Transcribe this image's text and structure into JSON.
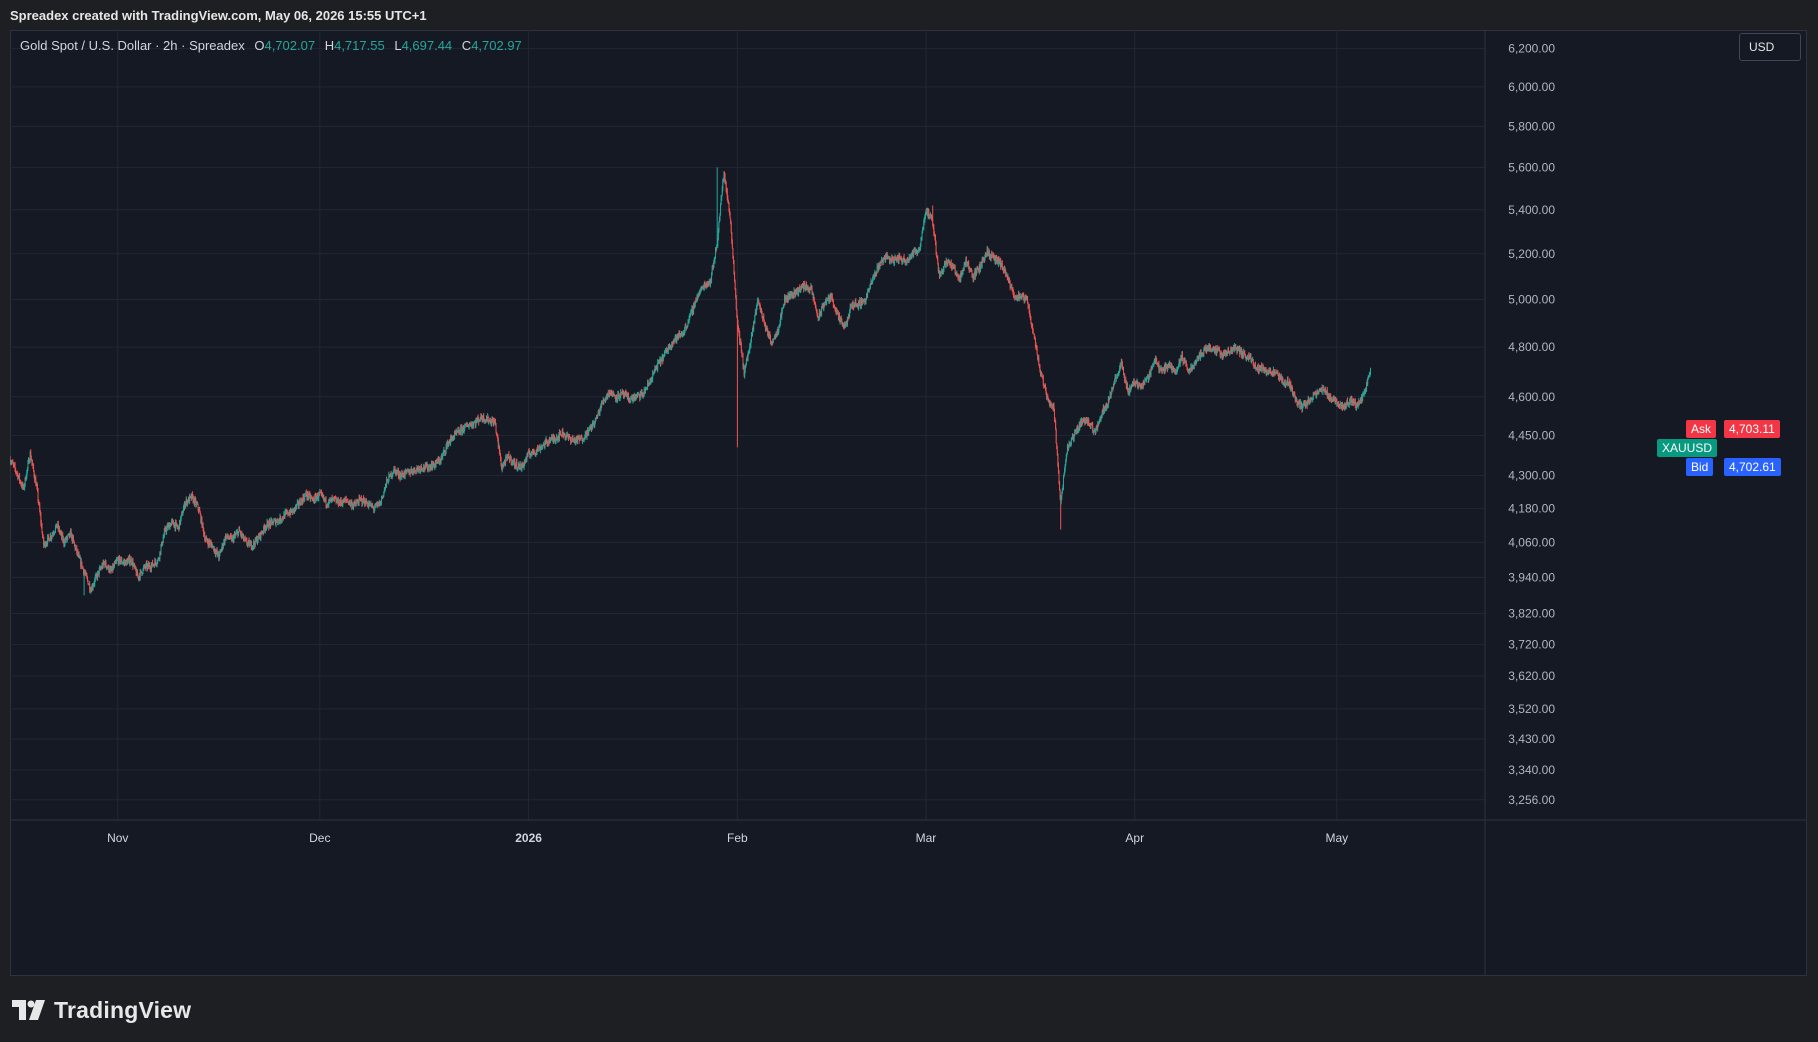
{
  "header": {
    "caption": "Spreadex created with TradingView.com, May 06, 2026 15:55 UTC+1"
  },
  "legend": {
    "symbol": "Gold Spot / U.S. Dollar · 2h · Spreadex",
    "open_label": "O",
    "open": "4,702.07",
    "high_label": "H",
    "high": "4,717.55",
    "low_label": "L",
    "low": "4,697.44",
    "close_label": "C",
    "close": "4,702.97"
  },
  "currency_button": "USD",
  "price_tags": {
    "ask_label": "Ask",
    "ask": "4,703.11",
    "symbol": "XAUUSD",
    "bid_label": "Bid",
    "bid": "4,702.61"
  },
  "colors": {
    "up": "#26a69a",
    "down": "#ef5350",
    "background": "#151924",
    "grid": "#232734",
    "ask": "#f23645",
    "bid": "#2962ff",
    "symbol_tag": "#089981"
  },
  "footer": {
    "brand": "TradingView",
    "logo_icon": "tradingview-logo-icon"
  },
  "chart_data": {
    "type": "candlestick",
    "scale": "log",
    "interval": "2h",
    "y_ticks": [
      3256,
      3340,
      3430,
      3520,
      3620,
      3720,
      3820,
      3940,
      4060,
      4180,
      4300,
      4450,
      4600,
      4800,
      5000,
      5200,
      5400,
      5600,
      5800,
      6000,
      6200
    ],
    "y_tick_labels": [
      "3,256.00",
      "3,340.00",
      "3,430.00",
      "3,520.00",
      "3,620.00",
      "3,720.00",
      "3,820.00",
      "3,940.00",
      "4,060.00",
      "4,180.00",
      "4,300.00",
      "4,450.00",
      "4,600.00",
      "4,800.00",
      "5,000.00",
      "5,200.00",
      "5,400.00",
      "5,600.00",
      "5,800.00",
      "6,000.00",
      "6,200.00"
    ],
    "ylim": [
      3200,
      6300
    ],
    "x_ticks": [
      {
        "date": "2025-11-01",
        "label": "Nov"
      },
      {
        "date": "2025-12-01",
        "label": "Dec"
      },
      {
        "date": "2026-01-01",
        "label": "2026"
      },
      {
        "date": "2026-02-01",
        "label": "Feb"
      },
      {
        "date": "2026-03-01",
        "label": "Mar"
      },
      {
        "date": "2026-04-01",
        "label": "Apr"
      },
      {
        "date": "2026-05-01",
        "label": "May"
      }
    ],
    "xlim": [
      "2025-10-16",
      "2026-05-23"
    ],
    "series_path": [
      [
        "2025-10-16",
        4360
      ],
      [
        "2025-10-17",
        4310
      ],
      [
        "2025-10-18",
        4250
      ],
      [
        "2025-10-19",
        4380
      ],
      [
        "2025-10-20",
        4250
      ],
      [
        "2025-10-21",
        4050
      ],
      [
        "2025-10-22",
        4080
      ],
      [
        "2025-10-23",
        4120
      ],
      [
        "2025-10-24",
        4060
      ],
      [
        "2025-10-25",
        4090
      ],
      [
        "2025-10-26",
        4020
      ],
      [
        "2025-10-27",
        3960
      ],
      [
        "2025-10-28",
        3900
      ],
      [
        "2025-10-29",
        3950
      ],
      [
        "2025-10-30",
        3990
      ],
      [
        "2025-10-31",
        3960
      ],
      [
        "2025-11-01",
        4000
      ],
      [
        "2025-11-02",
        3990
      ],
      [
        "2025-11-03",
        4000
      ],
      [
        "2025-11-04",
        3940
      ],
      [
        "2025-11-05",
        3975
      ],
      [
        "2025-11-06",
        3980
      ],
      [
        "2025-11-07",
        4000
      ],
      [
        "2025-11-08",
        4100
      ],
      [
        "2025-11-09",
        4130
      ],
      [
        "2025-11-10",
        4110
      ],
      [
        "2025-11-11",
        4200
      ],
      [
        "2025-11-12",
        4220
      ],
      [
        "2025-11-13",
        4180
      ],
      [
        "2025-11-14",
        4070
      ],
      [
        "2025-11-15",
        4050
      ],
      [
        "2025-11-16",
        4010
      ],
      [
        "2025-11-17",
        4080
      ],
      [
        "2025-11-18",
        4070
      ],
      [
        "2025-11-19",
        4100
      ],
      [
        "2025-11-20",
        4060
      ],
      [
        "2025-11-21",
        4050
      ],
      [
        "2025-11-22",
        4080
      ],
      [
        "2025-11-23",
        4120
      ],
      [
        "2025-11-24",
        4130
      ],
      [
        "2025-11-25",
        4140
      ],
      [
        "2025-11-26",
        4160
      ],
      [
        "2025-11-27",
        4170
      ],
      [
        "2025-11-28",
        4200
      ],
      [
        "2025-11-29",
        4230
      ],
      [
        "2025-11-30",
        4210
      ],
      [
        "2025-12-01",
        4230
      ],
      [
        "2025-12-02",
        4200
      ],
      [
        "2025-12-03",
        4210
      ],
      [
        "2025-12-04",
        4200
      ],
      [
        "2025-12-05",
        4210
      ],
      [
        "2025-12-06",
        4190
      ],
      [
        "2025-12-07",
        4210
      ],
      [
        "2025-12-08",
        4200
      ],
      [
        "2025-12-09",
        4180
      ],
      [
        "2025-12-10",
        4200
      ],
      [
        "2025-12-11",
        4280
      ],
      [
        "2025-12-12",
        4320
      ],
      [
        "2025-12-13",
        4300
      ],
      [
        "2025-12-14",
        4310
      ],
      [
        "2025-12-15",
        4320
      ],
      [
        "2025-12-16",
        4330
      ],
      [
        "2025-12-17",
        4330
      ],
      [
        "2025-12-18",
        4340
      ],
      [
        "2025-12-19",
        4360
      ],
      [
        "2025-12-20",
        4420
      ],
      [
        "2025-12-21",
        4450
      ],
      [
        "2025-12-22",
        4470
      ],
      [
        "2025-12-23",
        4490
      ],
      [
        "2025-12-24",
        4500
      ],
      [
        "2025-12-25",
        4520
      ],
      [
        "2025-12-26",
        4510
      ],
      [
        "2025-12-27",
        4500
      ],
      [
        "2025-12-28",
        4330
      ],
      [
        "2025-12-29",
        4370
      ],
      [
        "2025-12-30",
        4340
      ],
      [
        "2025-12-31",
        4330
      ],
      [
        "2026-01-01",
        4380
      ],
      [
        "2026-01-02",
        4390
      ],
      [
        "2026-01-03",
        4410
      ],
      [
        "2026-01-04",
        4430
      ],
      [
        "2026-01-05",
        4440
      ],
      [
        "2026-01-06",
        4460
      ],
      [
        "2026-01-07",
        4440
      ],
      [
        "2026-01-08",
        4430
      ],
      [
        "2026-01-09",
        4440
      ],
      [
        "2026-01-10",
        4470
      ],
      [
        "2026-01-11",
        4510
      ],
      [
        "2026-01-12",
        4580
      ],
      [
        "2026-01-13",
        4620
      ],
      [
        "2026-01-14",
        4600
      ],
      [
        "2026-01-15",
        4610
      ],
      [
        "2026-01-16",
        4590
      ],
      [
        "2026-01-17",
        4600
      ],
      [
        "2026-01-18",
        4610
      ],
      [
        "2026-01-19",
        4660
      ],
      [
        "2026-01-20",
        4720
      ],
      [
        "2026-01-21",
        4760
      ],
      [
        "2026-01-22",
        4810
      ],
      [
        "2026-01-23",
        4840
      ],
      [
        "2026-01-24",
        4860
      ],
      [
        "2026-01-25",
        4930
      ],
      [
        "2026-01-26",
        5010
      ],
      [
        "2026-01-27",
        5060
      ],
      [
        "2026-01-28",
        5080
      ],
      [
        "2026-01-29",
        5250
      ],
      [
        "2026-01-30",
        5580
      ],
      [
        "2026-01-31",
        5340
      ],
      [
        "2026-02-01",
        4900
      ],
      [
        "2026-02-02",
        4700
      ],
      [
        "2026-02-03",
        4820
      ],
      [
        "2026-02-04",
        5000
      ],
      [
        "2026-02-05",
        4900
      ],
      [
        "2026-02-06",
        4820
      ],
      [
        "2026-02-07",
        4870
      ],
      [
        "2026-02-08",
        5000
      ],
      [
        "2026-02-09",
        5020
      ],
      [
        "2026-02-10",
        5040
      ],
      [
        "2026-02-11",
        5060
      ],
      [
        "2026-02-12",
        5040
      ],
      [
        "2026-02-13",
        4920
      ],
      [
        "2026-02-14",
        4990
      ],
      [
        "2026-02-15",
        5010
      ],
      [
        "2026-02-16",
        4920
      ],
      [
        "2026-02-17",
        4880
      ],
      [
        "2026-02-18",
        4980
      ],
      [
        "2026-02-19",
        4980
      ],
      [
        "2026-02-20",
        5000
      ],
      [
        "2026-02-21",
        5080
      ],
      [
        "2026-02-22",
        5150
      ],
      [
        "2026-02-23",
        5190
      ],
      [
        "2026-02-24",
        5170
      ],
      [
        "2026-02-25",
        5180
      ],
      [
        "2026-02-26",
        5170
      ],
      [
        "2026-02-27",
        5200
      ],
      [
        "2026-02-28",
        5220
      ],
      [
        "2026-03-01",
        5400
      ],
      [
        "2026-03-02",
        5340
      ],
      [
        "2026-03-03",
        5100
      ],
      [
        "2026-03-04",
        5170
      ],
      [
        "2026-03-05",
        5140
      ],
      [
        "2026-03-06",
        5090
      ],
      [
        "2026-03-07",
        5170
      ],
      [
        "2026-03-08",
        5100
      ],
      [
        "2026-03-09",
        5140
      ],
      [
        "2026-03-10",
        5210
      ],
      [
        "2026-03-11",
        5180
      ],
      [
        "2026-03-12",
        5160
      ],
      [
        "2026-03-13",
        5100
      ],
      [
        "2026-03-14",
        5020
      ],
      [
        "2026-03-15",
        5010
      ],
      [
        "2026-03-16",
        5000
      ],
      [
        "2026-03-17",
        4850
      ],
      [
        "2026-03-18",
        4700
      ],
      [
        "2026-03-19",
        4600
      ],
      [
        "2026-03-20",
        4550
      ],
      [
        "2026-03-21",
        4200
      ],
      [
        "2026-03-22",
        4400
      ],
      [
        "2026-03-23",
        4450
      ],
      [
        "2026-03-24",
        4500
      ],
      [
        "2026-03-25",
        4510
      ],
      [
        "2026-03-26",
        4460
      ],
      [
        "2026-03-27",
        4530
      ],
      [
        "2026-03-28",
        4580
      ],
      [
        "2026-03-29",
        4660
      ],
      [
        "2026-03-30",
        4730
      ],
      [
        "2026-03-31",
        4620
      ],
      [
        "2026-04-01",
        4660
      ],
      [
        "2026-04-02",
        4640
      ],
      [
        "2026-04-03",
        4680
      ],
      [
        "2026-04-04",
        4750
      ],
      [
        "2026-04-05",
        4700
      ],
      [
        "2026-04-06",
        4730
      ],
      [
        "2026-04-07",
        4700
      ],
      [
        "2026-04-08",
        4760
      ],
      [
        "2026-04-09",
        4700
      ],
      [
        "2026-04-10",
        4740
      ],
      [
        "2026-04-11",
        4780
      ],
      [
        "2026-04-12",
        4800
      ],
      [
        "2026-04-13",
        4790
      ],
      [
        "2026-04-14",
        4770
      ],
      [
        "2026-04-15",
        4780
      ],
      [
        "2026-04-16",
        4800
      ],
      [
        "2026-04-17",
        4770
      ],
      [
        "2026-04-18",
        4760
      ],
      [
        "2026-04-19",
        4720
      ],
      [
        "2026-04-20",
        4710
      ],
      [
        "2026-04-21",
        4700
      ],
      [
        "2026-04-22",
        4690
      ],
      [
        "2026-04-23",
        4660
      ],
      [
        "2026-04-24",
        4650
      ],
      [
        "2026-04-25",
        4580
      ],
      [
        "2026-04-26",
        4560
      ],
      [
        "2026-04-27",
        4590
      ],
      [
        "2026-04-28",
        4610
      ],
      [
        "2026-04-29",
        4630
      ],
      [
        "2026-04-30",
        4600
      ],
      [
        "2026-05-01",
        4580
      ],
      [
        "2026-05-02",
        4560
      ],
      [
        "2026-05-03",
        4590
      ],
      [
        "2026-05-04",
        4560
      ],
      [
        "2026-05-05",
        4610
      ],
      [
        "2026-05-06",
        4703
      ]
    ],
    "extremes": [
      [
        "2026-01-29",
        5600,
        "high"
      ],
      [
        "2026-02-01",
        4405,
        "low"
      ],
      [
        "2026-03-02",
        5420,
        "high"
      ],
      [
        "2026-03-21",
        4105,
        "low"
      ],
      [
        "2025-10-27",
        3880,
        "low"
      ]
    ],
    "last_price": 4702.97
  }
}
